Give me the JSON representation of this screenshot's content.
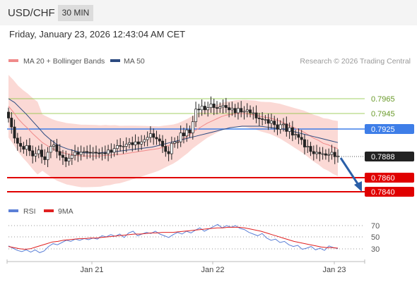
{
  "header": {
    "symbol": "USD/CHF",
    "timeframe": "30 MIN",
    "datetime": "Friday, January 23, 2026 12:43:04 AM CET"
  },
  "legend": {
    "ma20": "MA 20 + Bollinger Bands",
    "ma50": "MA 50"
  },
  "credit": "Research © 2026 Trading Central",
  "rsi_legend": {
    "rsi": "RSI",
    "ma": "9MA"
  },
  "colors": {
    "resistance": "#8dc63f",
    "pivot": "#3e7ee8",
    "support": "#e00000",
    "current": "#222222",
    "bollinger": "#fbd9d5",
    "ma20": "#f08a8a",
    "ma50": "#2c4a80",
    "rsi": "#5b7fd6",
    "rsi_ma": "#e02020",
    "arrow": "#2a5fa8",
    "up_candle": "#ffffff",
    "down_candle": "#222222"
  },
  "chart_data": {
    "type": "candlestick",
    "x_tick_labels": [
      "Jan 21",
      "Jan 22",
      "Jan 23"
    ],
    "ylim": [
      0.7828,
      0.7995
    ],
    "levels": [
      {
        "name": "resistance-2",
        "value": "0.7965",
        "role": "resistance"
      },
      {
        "name": "resistance-1",
        "value": "0.7945",
        "role": "resistance"
      },
      {
        "name": "pivot",
        "value": "0.7925",
        "role": "pivot"
      },
      {
        "name": "last-price",
        "value": "0.7888",
        "role": "current"
      },
      {
        "name": "support-1",
        "value": "0.7860",
        "role": "support"
      },
      {
        "name": "support-2",
        "value": "0.7840",
        "role": "support"
      }
    ],
    "forecast_target": 0.784,
    "candles_close": [
      0.7939,
      0.7927,
      0.7912,
      0.7905,
      0.7901,
      0.7897,
      0.7902,
      0.7895,
      0.7888,
      0.7891,
      0.7896,
      0.7887,
      0.7883,
      0.7893,
      0.7901,
      0.7903,
      0.7894,
      0.7889,
      0.7886,
      0.7881,
      0.7885,
      0.7889,
      0.7893,
      0.789,
      0.7893,
      0.7894,
      0.7893,
      0.7892,
      0.7893,
      0.7892,
      0.7891,
      0.7892,
      0.7891,
      0.7896,
      0.7893,
      0.7898,
      0.7902,
      0.7901,
      0.7901,
      0.7904,
      0.7906,
      0.7903,
      0.7907,
      0.7904,
      0.7907,
      0.791,
      0.7913,
      0.7918,
      0.7913,
      0.7911,
      0.7908,
      0.7901,
      0.7894,
      0.7891,
      0.7905,
      0.7907,
      0.7907,
      0.7919,
      0.7915,
      0.7923,
      0.7919,
      0.7934,
      0.7951,
      0.795,
      0.7955,
      0.795,
      0.7953,
      0.7958,
      0.7953,
      0.7952,
      0.7954,
      0.7956,
      0.7953,
      0.795,
      0.7952,
      0.7946,
      0.7952,
      0.7947,
      0.7948,
      0.795,
      0.7946,
      0.7946,
      0.7939,
      0.7938,
      0.7937,
      0.7937,
      0.7932,
      0.7935,
      0.793,
      0.7924,
      0.793,
      0.7931,
      0.7921,
      0.7926,
      0.7916,
      0.7917,
      0.7913,
      0.791,
      0.79,
      0.7901,
      0.7894,
      0.7891,
      0.7893,
      0.7891,
      0.7891,
      0.7889,
      0.789,
      0.7893,
      0.7887,
      0.7888
    ],
    "ma20": [
      0.7955,
      0.7947,
      0.7938,
      0.7931,
      0.7925,
      0.7918,
      0.7912,
      0.7906,
      0.7902,
      0.7898,
      0.7895,
      0.7893,
      0.7891,
      0.789,
      0.7889,
      0.7888,
      0.7888,
      0.7888,
      0.7888,
      0.7888,
      0.7889,
      0.7889,
      0.789,
      0.789,
      0.7891,
      0.7892,
      0.7893,
      0.7894,
      0.7895,
      0.7896,
      0.7897,
      0.7898,
      0.79,
      0.7902,
      0.7904,
      0.7907,
      0.7911,
      0.7915,
      0.792,
      0.7924,
      0.7928,
      0.7932,
      0.7935,
      0.7938,
      0.7941,
      0.7943,
      0.7944,
      0.7945,
      0.7945,
      0.7945,
      0.7944,
      0.7943,
      0.7941,
      0.794,
      0.7939,
      0.7937,
      0.7935,
      0.7932,
      0.7929,
      0.7926,
      0.7923,
      0.792,
      0.7916,
      0.7912,
      0.7909,
      0.7905,
      0.7903,
      0.79,
      0.7898
    ],
    "ma50": [
      0.7965,
      0.796,
      0.7952,
      0.7944,
      0.7935,
      0.7926,
      0.7917,
      0.791,
      0.7904,
      0.79,
      0.7897,
      0.7895,
      0.7893,
      0.7892,
      0.7892,
      0.7892,
      0.7893,
      0.7893,
      0.7894,
      0.7895,
      0.7896,
      0.7897,
      0.7898,
      0.7899,
      0.79,
      0.7902,
      0.7904,
      0.7906,
      0.7908,
      0.791,
      0.7912,
      0.7914,
      0.7916,
      0.7918,
      0.792,
      0.7922,
      0.7924,
      0.7926,
      0.7927,
      0.7928,
      0.7928,
      0.7928,
      0.7928,
      0.7927,
      0.7926,
      0.7925,
      0.7924,
      0.7922,
      0.792,
      0.7918,
      0.7916,
      0.7914,
      0.7912,
      0.791,
      0.7908,
      0.7906
    ],
    "rsi": {
      "ylim": [
        0,
        100
      ],
      "tick_labels": [
        "70",
        "50",
        "30"
      ],
      "rsi_values": [
        34,
        30,
        26,
        24,
        27,
        23,
        27,
        22,
        25,
        33,
        38,
        36,
        40,
        44,
        42,
        46,
        44,
        47,
        45,
        48,
        46,
        52,
        50,
        54,
        51,
        55,
        49,
        57,
        60,
        52,
        55,
        58,
        56,
        60,
        55,
        52,
        49,
        54,
        58,
        55,
        60,
        57,
        62,
        66,
        60,
        64,
        68,
        72,
        66,
        70,
        67,
        70,
        65,
        63,
        58,
        55,
        52,
        56,
        48,
        44,
        46,
        40,
        42,
        36,
        33,
        35,
        28,
        30,
        33,
        27,
        30,
        26,
        34,
        31,
        29
      ],
      "ma_values": [
        33,
        31,
        29,
        28,
        29,
        32,
        35,
        38,
        41,
        42,
        44,
        45,
        46,
        47,
        47,
        48,
        48,
        49,
        50,
        51,
        52,
        53,
        54,
        55,
        55,
        56,
        57,
        57,
        58,
        58,
        58,
        59,
        60,
        61,
        62,
        63,
        64,
        65,
        66,
        66,
        67,
        67,
        67,
        66,
        64,
        62,
        60,
        57,
        54,
        51,
        48,
        45,
        42,
        40,
        38,
        36,
        34,
        32,
        31,
        31,
        30
      ]
    }
  }
}
